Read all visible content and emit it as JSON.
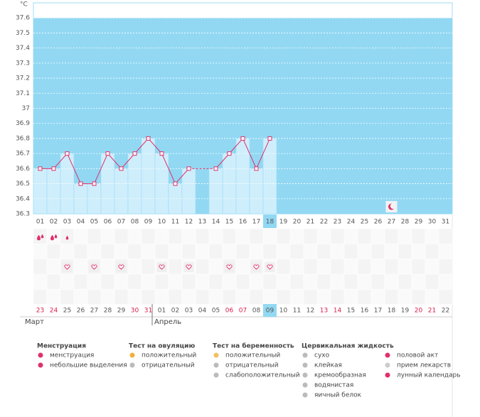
{
  "chart_data": {
    "type": "line",
    "y_label": "°C",
    "categories": [
      "01",
      "02",
      "03",
      "04",
      "05",
      "06",
      "07",
      "08",
      "09",
      "10",
      "11",
      "12",
      "13",
      "14",
      "15",
      "16",
      "17",
      "18",
      "19",
      "20",
      "21",
      "22",
      "23",
      "24",
      "25",
      "26",
      "27",
      "28",
      "29",
      "30",
      "31"
    ],
    "values": [
      36.6,
      36.6,
      36.7,
      36.5,
      36.5,
      36.7,
      36.6,
      36.7,
      36.8,
      36.7,
      36.5,
      36.6,
      null,
      36.6,
      36.7,
      36.8,
      36.6,
      36.8,
      null,
      null,
      null,
      null,
      null,
      null,
      null,
      null,
      null,
      null,
      null,
      null,
      null
    ],
    "color": "#e0306a",
    "ylim": [
      36.3,
      37.7
    ],
    "yticks": [
      36.3,
      36.4,
      36.5,
      36.6,
      36.7,
      36.8,
      36.9,
      37,
      37.1,
      37.2,
      37.3,
      37.4,
      37.5,
      37.6
    ],
    "grid": true,
    "today": "18",
    "menstruation_days": [
      "01",
      "02"
    ],
    "spotting_days": [
      "03"
    ],
    "intercourse_days": [
      "03",
      "05",
      "07",
      "10",
      "12",
      "15",
      "17",
      "18"
    ],
    "moon_days": [
      "27"
    ],
    "dates": [
      "23",
      "24",
      "25",
      "26",
      "27",
      "28",
      "29",
      "30",
      "31",
      "01",
      "02",
      "03",
      "04",
      "05",
      "06",
      "07",
      "08",
      "09",
      "10",
      "11",
      "12",
      "13",
      "14",
      "15",
      "16",
      "17",
      "18",
      "19",
      "20",
      "21",
      "22"
    ],
    "weekend": [
      0,
      1,
      7,
      8,
      14,
      15,
      21,
      22,
      28,
      29
    ],
    "months": [
      "Март",
      "Апрель"
    ],
    "legend": [
      {
        "title": "Менструация",
        "items": [
          "менструация",
          "небольшие выделения"
        ]
      },
      {
        "title": "Тест на овуляцию",
        "items": [
          "положительный",
          "отрицательный"
        ]
      },
      {
        "title": "Тест на беременность",
        "items": [
          "положительный",
          "отрицательный",
          "слабоположительный"
        ]
      },
      {
        "title": "Цервикальная жидкость",
        "items": [
          "сухо",
          "клейкая",
          "кремообразная",
          "водянистая",
          "яичный белок"
        ]
      },
      {
        "items": [
          "половой акт",
          "прием лекарств",
          "лунный календарь"
        ]
      }
    ]
  }
}
